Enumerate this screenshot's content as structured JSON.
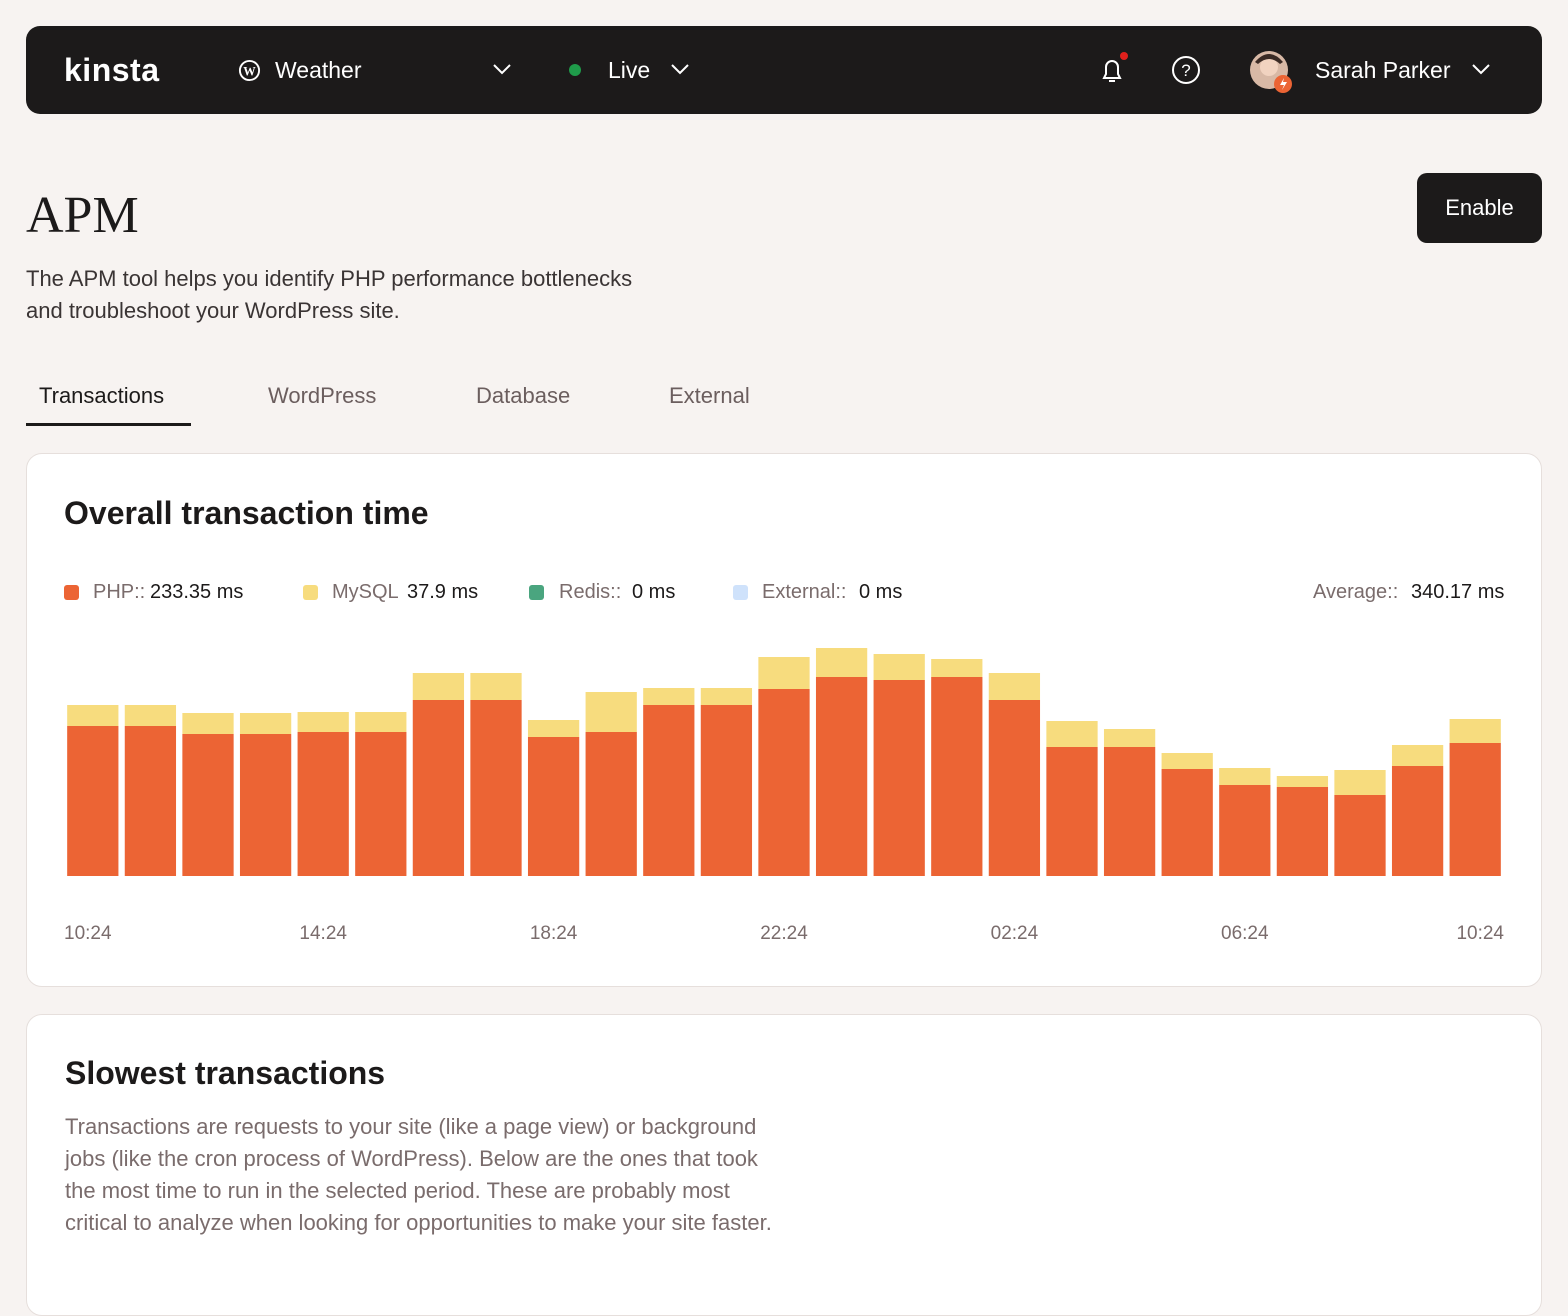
{
  "header": {
    "logo": "kinsta",
    "site": "Weather",
    "environment": "Live",
    "user": "Sarah Parker"
  },
  "page": {
    "title": "APM",
    "description_lines": [
      "The APM tool helps you identify PHP performance bottlenecks",
      "and troubleshoot your WordPress site."
    ],
    "button": "Enable"
  },
  "tabs": [
    "Transactions",
    "WordPress",
    "Database",
    "External"
  ],
  "chart_data": {
    "type": "bar",
    "stacked": true,
    "title": "Overall transaction time",
    "categories": [
      "10:24",
      null,
      null,
      null,
      "14:24",
      null,
      null,
      null,
      "18:24",
      null,
      null,
      null,
      "22:24",
      null,
      null,
      null,
      "02:24",
      null,
      null,
      null,
      "06:24",
      null,
      null,
      null,
      "10:24"
    ],
    "series": [
      {
        "name": "PHP::",
        "legend_value": "233.35 ms",
        "color": "#ec6434",
        "values": [
          300,
          300,
          284,
          284,
          288,
          288,
          352,
          352,
          278,
          288,
          342,
          342,
          374,
          398,
          392,
          398,
          352,
          258,
          258,
          214,
          182,
          178,
          162,
          220,
          266
        ]
      },
      {
        "name": "MySQL",
        "legend_value": "37.9 ms",
        "color": "#f7dc7e",
        "values": [
          42,
          42,
          42,
          42,
          40,
          40,
          54,
          54,
          34,
          80,
          34,
          34,
          64,
          58,
          52,
          36,
          54,
          52,
          36,
          32,
          34,
          22,
          50,
          42,
          48
        ]
      },
      {
        "name": "Redis::",
        "legend_value": "0 ms",
        "color": "#4aa57f",
        "values": [
          0,
          0,
          0,
          0,
          0,
          0,
          0,
          0,
          0,
          0,
          0,
          0,
          0,
          0,
          0,
          0,
          0,
          0,
          0,
          0,
          0,
          0,
          0,
          0,
          0
        ]
      },
      {
        "name": "External::",
        "legend_value": "0 ms",
        "color": "#cfe2fb",
        "values": [
          0,
          0,
          0,
          0,
          0,
          0,
          0,
          0,
          0,
          0,
          0,
          0,
          0,
          0,
          0,
          0,
          0,
          0,
          0,
          0,
          0,
          0,
          0,
          0,
          0
        ]
      }
    ],
    "summary_label": "Average::",
    "summary_value": "340.17 ms",
    "ylim": [
      0,
      500
    ]
  },
  "slowest": {
    "title": "Slowest transactions",
    "lines": [
      "Transactions are requests to your site (like a page view) or background",
      "jobs (like the cron process of WordPress). Below are the ones that took",
      "the most time to run in the selected period. These are probably most",
      "critical to analyze when looking for opportunities to make your site faster."
    ]
  }
}
